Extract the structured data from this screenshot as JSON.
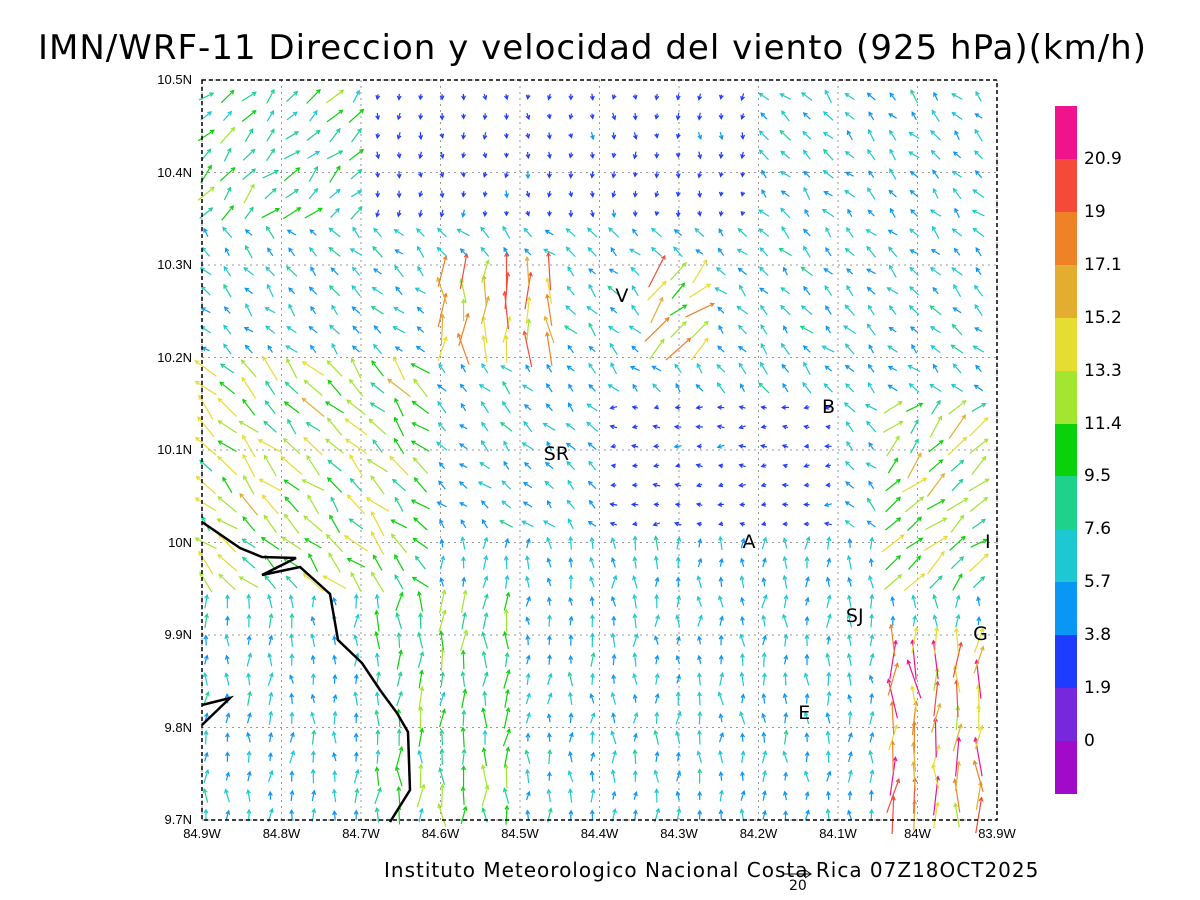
{
  "title": "IMN/WRF-11 Direccion y velocidad del viento (925 hPa)(km/h)",
  "footer": "Instituto Meteorologico Nacional Costa Rica 07Z18OCT2025",
  "reference_vector_label": "20",
  "map": {
    "lat_labels": [
      "10.5N",
      "10.4N",
      "10.3N",
      "10.2N",
      "10.1N",
      "10N",
      "9.9N",
      "9.8N",
      "9.7N"
    ],
    "lon_labels": [
      "84.9W",
      "84.8W",
      "84.7W",
      "84.6W",
      "84.5W",
      "84.4W",
      "84.3W",
      "84.2W",
      "84.1W",
      "84W",
      "83.9W"
    ],
    "lat_range": [
      9.7,
      10.5
    ],
    "lon_range": [
      -84.9,
      -83.9
    ],
    "grid": true,
    "places": [
      {
        "name": "V",
        "lon": -84.37,
        "lat": 10.265
      },
      {
        "name": "SR",
        "lon": -84.46,
        "lat": 10.095
      },
      {
        "name": "B",
        "lon": -84.11,
        "lat": 10.145
      },
      {
        "name": "A",
        "lon": -84.21,
        "lat": 10.0
      },
      {
        "name": "SJ",
        "lon": -84.08,
        "lat": 9.92
      },
      {
        "name": "G",
        "lon": -83.92,
        "lat": 9.9
      },
      {
        "name": "E",
        "lon": -84.14,
        "lat": 9.815
      },
      {
        "name": "I",
        "lon": -83.905,
        "lat": 10.0
      }
    ]
  },
  "colorbar": {
    "labels": [
      "20.9",
      "19",
      "17.1",
      "15.2",
      "13.3",
      "11.4",
      "9.5",
      "7.6",
      "5.7",
      "3.8",
      "1.9",
      "0"
    ],
    "colors": [
      "#f0148c",
      "#f54a3a",
      "#ef8226",
      "#e3ae2f",
      "#e6dc32",
      "#a2e632",
      "#0ad20a",
      "#1ed28c",
      "#1ec8d2",
      "#0a96f5",
      "#1e3cff",
      "#7828dc",
      "#a00ac8"
    ]
  },
  "chart_data": {
    "type": "vector_field",
    "title": "IMN/WRF-11 Direccion y velocidad del viento (925 hPa)(km/h)",
    "units": "km/h",
    "level": "925 hPa",
    "valid_time": "07Z18OCT2025",
    "reference_vector": 20,
    "regions": [
      {
        "lat": [
          10.35,
          10.5
        ],
        "lon": [
          -84.9,
          -84.7
        ],
        "dir_to": "NE",
        "speed": 9
      },
      {
        "lat": [
          10.35,
          10.5
        ],
        "lon": [
          -84.7,
          -84.2
        ],
        "dir_to": "S",
        "speed": 3
      },
      {
        "lat": [
          10.35,
          10.5
        ],
        "lon": [
          -84.2,
          -83.9
        ],
        "dir_to": "NW",
        "speed": 6
      },
      {
        "lat": [
          10.2,
          10.3
        ],
        "lon": [
          -84.6,
          -84.45
        ],
        "dir_to": "N",
        "speed": 16
      },
      {
        "lat": [
          10.2,
          10.3
        ],
        "lon": [
          -84.35,
          -84.25
        ],
        "dir_to": "NE",
        "speed": 15
      },
      {
        "lat": [
          9.95,
          10.2
        ],
        "lon": [
          -84.9,
          -84.6
        ],
        "dir_to": "NW",
        "speed": 12
      },
      {
        "lat": [
          10.02,
          10.15
        ],
        "lon": [
          -84.4,
          -84.1
        ],
        "dir_to": "W",
        "speed": 3
      },
      {
        "lat": [
          9.95,
          10.15
        ],
        "lon": [
          -84.05,
          -83.9
        ],
        "dir_to": "NE",
        "speed": 12
      },
      {
        "lat": [
          9.7,
          9.95
        ],
        "lon": [
          -84.7,
          -84.5
        ],
        "dir_to": "N",
        "speed": 10
      },
      {
        "lat": [
          9.7,
          9.9
        ],
        "lon": [
          -84.05,
          -83.9
        ],
        "dir_to": "N",
        "speed": 17
      },
      {
        "lat": [
          9.7,
          9.95
        ],
        "lon": [
          -84.9,
          -84.7
        ],
        "dir_to": "N",
        "speed": 6
      }
    ]
  }
}
